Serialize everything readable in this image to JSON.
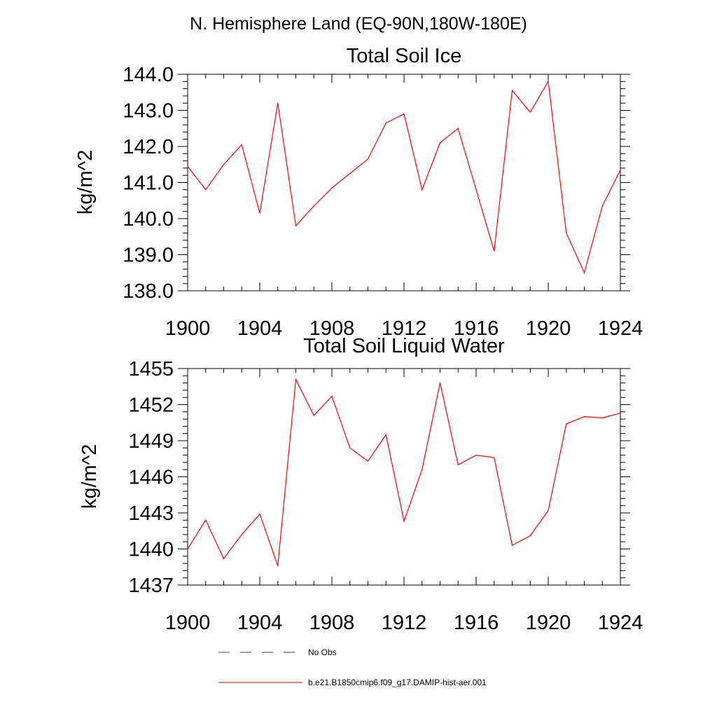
{
  "page_title": "N. Hemisphere Land (EQ-90N,180W-180E)",
  "chart_data": [
    {
      "type": "line",
      "title": "Total Soil Ice",
      "xlabel": "",
      "ylabel": "kg/m^2",
      "xlim": [
        1900,
        1924
      ],
      "ylim": [
        138.0,
        144.0
      ],
      "xticks": [
        "1900",
        "1904",
        "1908",
        "1912",
        "1916",
        "1920",
        "1924"
      ],
      "yticks": [
        "138.0",
        "139.0",
        "140.0",
        "141.0",
        "142.0",
        "143.0",
        "144.0"
      ],
      "grid": false,
      "series": [
        {
          "name": "b.e21.B1850cmip6.f09_g17.DAMIP-hist-aer.001",
          "color": "#ff0000",
          "x": [
            1900,
            1901,
            1902,
            1903,
            1904,
            1905,
            1906,
            1907,
            1908,
            1909,
            1910,
            1911,
            1912,
            1913,
            1914,
            1915,
            1916,
            1917,
            1918,
            1919,
            1920,
            1921,
            1922,
            1923,
            1924
          ],
          "values": [
            141.45,
            140.8,
            141.5,
            142.05,
            140.15,
            143.2,
            139.8,
            140.35,
            140.85,
            141.25,
            141.65,
            142.65,
            142.9,
            140.8,
            142.1,
            142.5,
            140.8,
            139.1,
            143.55,
            142.95,
            143.8,
            139.6,
            138.5,
            140.35,
            141.35
          ]
        }
      ]
    },
    {
      "type": "line",
      "title": "Total Soil Liquid Water",
      "xlabel": "",
      "ylabel": "kg/m^2",
      "xlim": [
        1900,
        1924
      ],
      "ylim": [
        1437,
        1455
      ],
      "xticks": [
        "1900",
        "1904",
        "1908",
        "1912",
        "1916",
        "1920",
        "1924"
      ],
      "yticks": [
        "1437",
        "1440",
        "1443",
        "1446",
        "1449",
        "1452",
        "1455"
      ],
      "grid": false,
      "series": [
        {
          "name": "b.e21.B1850cmip6.f09_g17.DAMIP-hist-aer.001",
          "color": "#ff0000",
          "x": [
            1900,
            1901,
            1902,
            1903,
            1904,
            1905,
            1906,
            1907,
            1908,
            1909,
            1910,
            1911,
            1912,
            1913,
            1914,
            1915,
            1916,
            1917,
            1918,
            1919,
            1920,
            1921,
            1922,
            1923,
            1924
          ],
          "values": [
            1440.0,
            1442.4,
            1439.2,
            1441.2,
            1442.9,
            1438.6,
            1454.1,
            1451.1,
            1452.7,
            1448.4,
            1447.3,
            1449.5,
            1442.3,
            1446.6,
            1453.8,
            1447.0,
            1447.8,
            1447.6,
            1440.3,
            1441.1,
            1443.2,
            1450.4,
            1451.0,
            1450.9,
            1451.3
          ]
        }
      ]
    }
  ],
  "legend": {
    "items": [
      {
        "label": "No Obs",
        "style": "dashed",
        "color": "#3b3b66"
      },
      {
        "label": "b.e21.B1850cmip6.f09_g17.DAMIP-hist-aer.001",
        "style": "solid",
        "color": "#ff0000"
      }
    ]
  }
}
